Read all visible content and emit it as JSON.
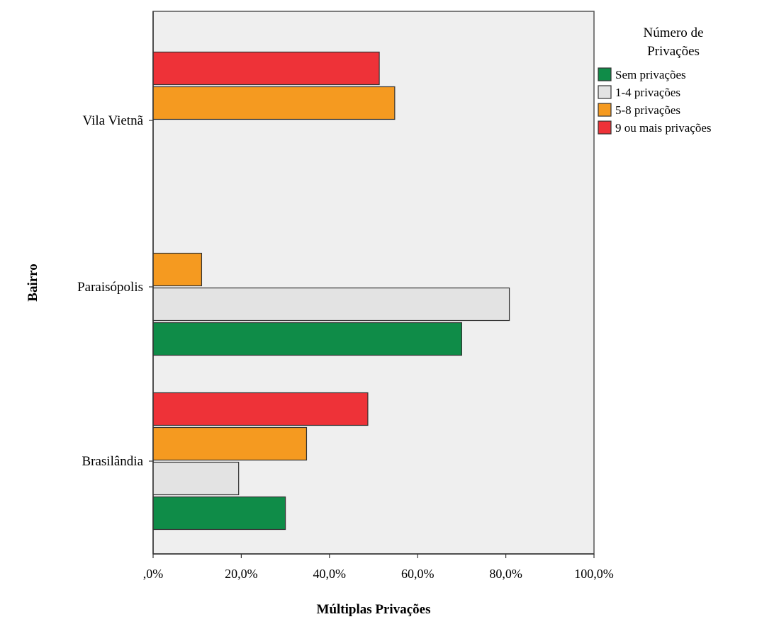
{
  "chart_data": {
    "type": "bar",
    "orientation": "horizontal",
    "xlabel": "Múltiplas Privações",
    "ylabel": "Bairro",
    "xlim": [
      0,
      1
    ],
    "x_ticks": [
      ",0%",
      "20,0%",
      "40,0%",
      "60,0%",
      "80,0%",
      "100,0%"
    ],
    "categories": [
      "Vila Vietnã",
      "Paraisópolis",
      "Brasilândia"
    ],
    "legend": {
      "title_lines": [
        "Número de",
        "Privações"
      ],
      "position": "right"
    },
    "series": [
      {
        "name": "Sem privações",
        "color": "#0f8c48",
        "values": [
          0.0,
          0.7,
          0.3
        ]
      },
      {
        "name": "1-4 privações",
        "color": "#e3e3e3",
        "values": [
          0.0,
          0.808,
          0.194
        ]
      },
      {
        "name": "5-8 privações",
        "color": "#f59a20",
        "values": [
          0.548,
          0.11,
          0.348
        ]
      },
      {
        "name": "9 ou mais privações",
        "color": "#ee3238",
        "values": [
          0.513,
          0.0,
          0.487
        ]
      }
    ],
    "plot_background": "#efefef",
    "grid": false
  }
}
